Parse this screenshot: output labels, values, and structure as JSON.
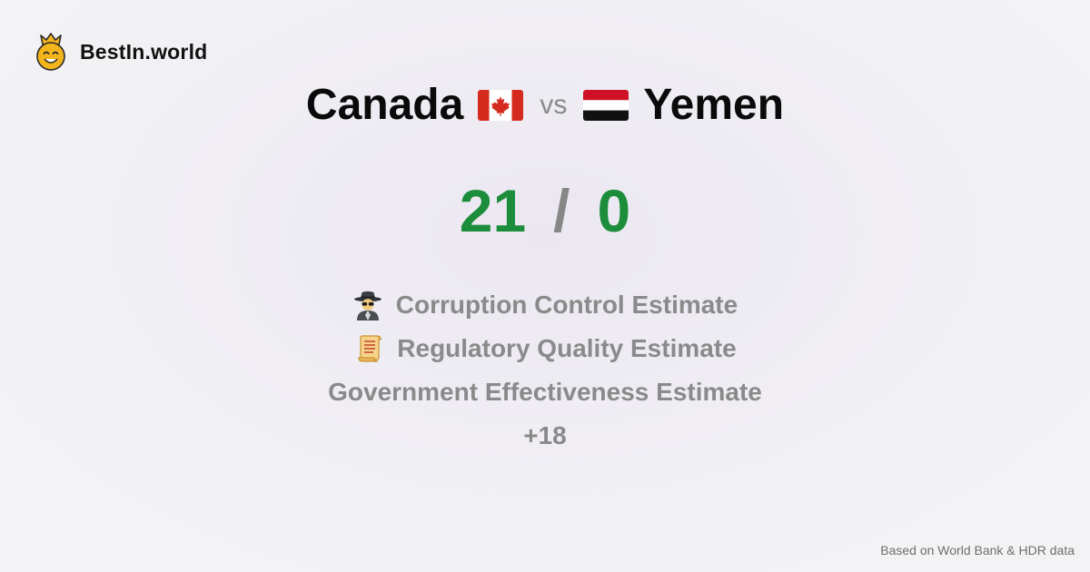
{
  "brand": {
    "name": "BestIn.world",
    "icon": "crown-smiley-icon"
  },
  "comparison": {
    "left_country": "Canada",
    "left_flag": "canada-flag-icon",
    "vs_label": "vs",
    "right_country": "Yemen",
    "right_flag": "yemen-flag-icon"
  },
  "score": {
    "left": "21",
    "separator": "/",
    "right": "0"
  },
  "metrics": [
    {
      "icon": "spy-detective-icon",
      "label": "Corruption Control Estimate"
    },
    {
      "icon": "scroll-icon",
      "label": "Regulatory Quality Estimate"
    },
    {
      "icon": "",
      "label": "Government Effectiveness Estimate"
    }
  ],
  "more": "+18",
  "footer": {
    "source_note": "Based on World Bank & HDR data"
  },
  "colors": {
    "score_green": "#1c8d3a",
    "muted_gray": "#8a8a8a",
    "canada_red": "#d52b1e",
    "yemen_red": "#ce1126"
  }
}
